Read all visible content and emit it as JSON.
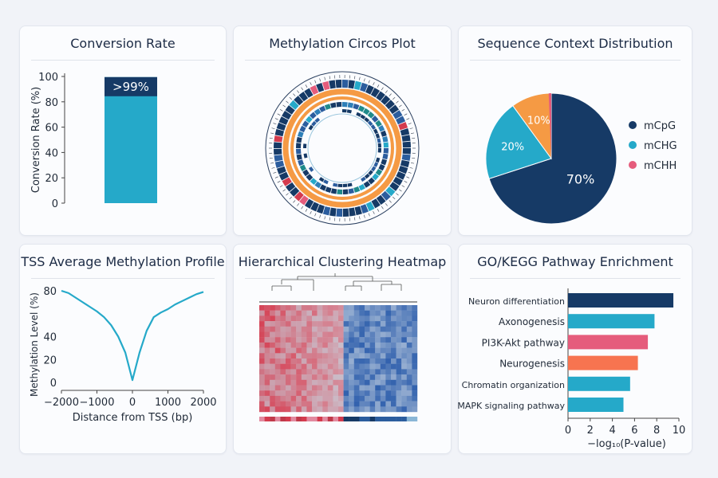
{
  "panels": [
    {
      "title": "Conversion Rate"
    },
    {
      "title": "Methylation Circos Plot"
    },
    {
      "title": "Sequence Context Distribution"
    },
    {
      "title": "TSS Average Methylation Profile"
    },
    {
      "title": "Hierarchical Clustering Heatmap"
    },
    {
      "title": "GO/KEGG Pathway Enrichment"
    }
  ],
  "colors": {
    "navy": "#163a66",
    "teal": "#25a9c9",
    "orange": "#f59a44",
    "pink": "#e55c7c",
    "coral": "#f77450",
    "red": "#d43b4e",
    "blue": "#2b5d9e"
  },
  "chart_data": [
    {
      "type": "bar",
      "title": "Conversion Rate",
      "categories": [
        ""
      ],
      "values": [
        99.5
      ],
      "data_label": ">99%",
      "xlabel": "",
      "ylabel": "Conversion Rate (%)",
      "yticks": [
        "0",
        "20",
        "40",
        "60",
        "80",
        "100"
      ],
      "ylim": [
        0,
        100
      ]
    },
    {
      "type": "circos",
      "title": "Methylation Circos Plot"
    },
    {
      "type": "pie",
      "title": "Sequence Context Distribution",
      "labels": [
        "mCpG",
        "mCHG",
        "mCHH"
      ],
      "values": [
        70,
        20,
        10
      ],
      "slice_labels": [
        "70%",
        "20%",
        "10%"
      ],
      "legend": [
        "mCpG",
        "mCHG",
        "mCHH"
      ],
      "legend_position": "right"
    },
    {
      "type": "line",
      "title": "TSS Average Methylation Profile",
      "x": [
        -2000,
        -1800,
        -1600,
        -1400,
        -1200,
        -1000,
        -800,
        -600,
        -400,
        -200,
        0,
        200,
        400,
        600,
        800,
        1000,
        1200,
        1400,
        1600,
        1800,
        2000
      ],
      "y": [
        80,
        78,
        74,
        70,
        66,
        62,
        57,
        50,
        40,
        26,
        2,
        26,
        45,
        57,
        61,
        64,
        68,
        71,
        74,
        77,
        79
      ],
      "xlabel": "Distance from TSS (bp)",
      "ylabel": "Methylation Level (%)",
      "xticks": [
        "−2000",
        "−1000",
        "0",
        "1000",
        "2000"
      ],
      "yticks": [
        "0",
        "20",
        "40",
        "80"
      ],
      "xlim": [
        -2000,
        2000
      ],
      "ylim": [
        0,
        80
      ]
    },
    {
      "type": "heatmap",
      "title": "Hierarchical Clustering Heatmap"
    },
    {
      "type": "bar",
      "orientation": "horizontal",
      "title": "GO/KEGG Pathway Enrichment",
      "categories": [
        "Neuron differentiation",
        "Axonogenesis",
        "PI3K-Akt pathway",
        "Neurogenesis",
        "Chromatin organization",
        "MAPK signaling pathway"
      ],
      "values": [
        9.5,
        7.8,
        7.2,
        6.3,
        5.6,
        5.0
      ],
      "xlabel": "−log₁₀(P-value)",
      "xticks": [
        "0",
        "2",
        "4",
        "6",
        "8",
        "10"
      ],
      "xlim": [
        0,
        10
      ]
    }
  ]
}
